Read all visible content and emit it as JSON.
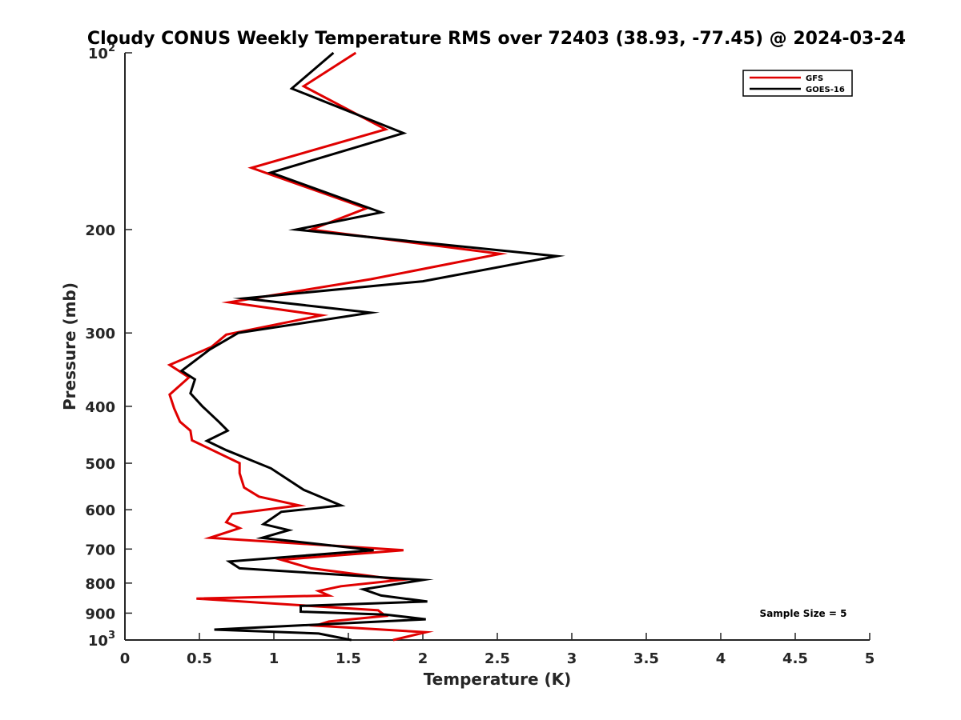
{
  "chart_data": {
    "type": "line",
    "title": "Cloudy CONUS Weekly Temperature RMS over 72403 (38.93, -77.45) @ 2024-03-24",
    "xlabel": "Temperature (K)",
    "ylabel": "Pressure (mb)",
    "xlim": [
      0,
      5
    ],
    "ylim": [
      100,
      1000
    ],
    "yscale": "log",
    "yreverse": true,
    "grid": false,
    "legend_position": "top-right",
    "x_ticks": [
      "0",
      "0.5",
      "1",
      "1.5",
      "2",
      "2.5",
      "3",
      "3.5",
      "4",
      "4.5",
      "5"
    ],
    "x_tick_values": [
      0,
      0.5,
      1,
      1.5,
      2,
      2.5,
      3,
      3.5,
      4,
      4.5,
      5
    ],
    "y_tick_values": [
      100,
      200,
      300,
      400,
      500,
      600,
      700,
      800,
      900,
      1000
    ],
    "y_ticks": [
      {
        "base": "10",
        "exp": "2"
      },
      {
        "text": "200"
      },
      {
        "text": "300"
      },
      {
        "text": "400"
      },
      {
        "text": "500"
      },
      {
        "text": "600"
      },
      {
        "text": "700"
      },
      {
        "text": "800"
      },
      {
        "text": "900"
      },
      {
        "base": "10",
        "exp": "3"
      }
    ],
    "annotation": "Sample Size = 5",
    "series": [
      {
        "name": "GFS",
        "color": "#e00000",
        "points": [
          [
            1.55,
            100
          ],
          [
            1.2,
            114
          ],
          [
            1.75,
            135
          ],
          [
            0.85,
            157
          ],
          [
            1.62,
            184
          ],
          [
            1.25,
            200
          ],
          [
            2.52,
            220
          ],
          [
            1.65,
            243
          ],
          [
            0.7,
            266
          ],
          [
            1.32,
            280
          ],
          [
            0.68,
            302
          ],
          [
            0.58,
            317
          ],
          [
            0.3,
            340
          ],
          [
            0.43,
            357
          ],
          [
            0.3,
            382
          ],
          [
            0.33,
            403
          ],
          [
            0.37,
            425
          ],
          [
            0.44,
            440
          ],
          [
            0.45,
            457
          ],
          [
            0.55,
            470
          ],
          [
            0.77,
            500
          ],
          [
            0.77,
            520
          ],
          [
            0.8,
            550
          ],
          [
            0.9,
            570
          ],
          [
            1.17,
            590
          ],
          [
            0.72,
            610
          ],
          [
            0.68,
            630
          ],
          [
            0.77,
            645
          ],
          [
            0.57,
            670
          ],
          [
            1.87,
            703
          ],
          [
            1.05,
            730
          ],
          [
            1.25,
            755
          ],
          [
            1.85,
            790
          ],
          [
            1.45,
            810
          ],
          [
            1.3,
            825
          ],
          [
            1.37,
            840
          ],
          [
            0.48,
            850
          ],
          [
            1.7,
            890
          ],
          [
            1.75,
            910
          ],
          [
            1.37,
            930
          ],
          [
            1.28,
            945
          ],
          [
            2.02,
            970
          ],
          [
            1.8,
            1000
          ]
        ]
      },
      {
        "name": "GOES-16",
        "color": "#000000",
        "points": [
          [
            1.4,
            100
          ],
          [
            1.12,
            115
          ],
          [
            1.87,
            137
          ],
          [
            0.98,
            160
          ],
          [
            1.72,
            187
          ],
          [
            1.15,
            200
          ],
          [
            2.9,
            222
          ],
          [
            2.0,
            245
          ],
          [
            0.8,
            262
          ],
          [
            1.65,
            277
          ],
          [
            0.76,
            300
          ],
          [
            0.57,
            320
          ],
          [
            0.38,
            348
          ],
          [
            0.47,
            360
          ],
          [
            0.44,
            380
          ],
          [
            0.52,
            400
          ],
          [
            0.63,
            425
          ],
          [
            0.69,
            440
          ],
          [
            0.55,
            458
          ],
          [
            0.68,
            475
          ],
          [
            0.98,
            510
          ],
          [
            1.2,
            555
          ],
          [
            1.45,
            590
          ],
          [
            1.05,
            605
          ],
          [
            0.93,
            635
          ],
          [
            1.1,
            650
          ],
          [
            0.92,
            670
          ],
          [
            1.67,
            703
          ],
          [
            0.7,
            735
          ],
          [
            0.77,
            755
          ],
          [
            2.0,
            790
          ],
          [
            1.6,
            820
          ],
          [
            1.72,
            840
          ],
          [
            2.03,
            860
          ],
          [
            1.18,
            875
          ],
          [
            1.18,
            895
          ],
          [
            1.75,
            905
          ],
          [
            2.02,
            922
          ],
          [
            0.6,
            960
          ],
          [
            1.3,
            975
          ],
          [
            1.52,
            1000
          ]
        ]
      }
    ]
  }
}
